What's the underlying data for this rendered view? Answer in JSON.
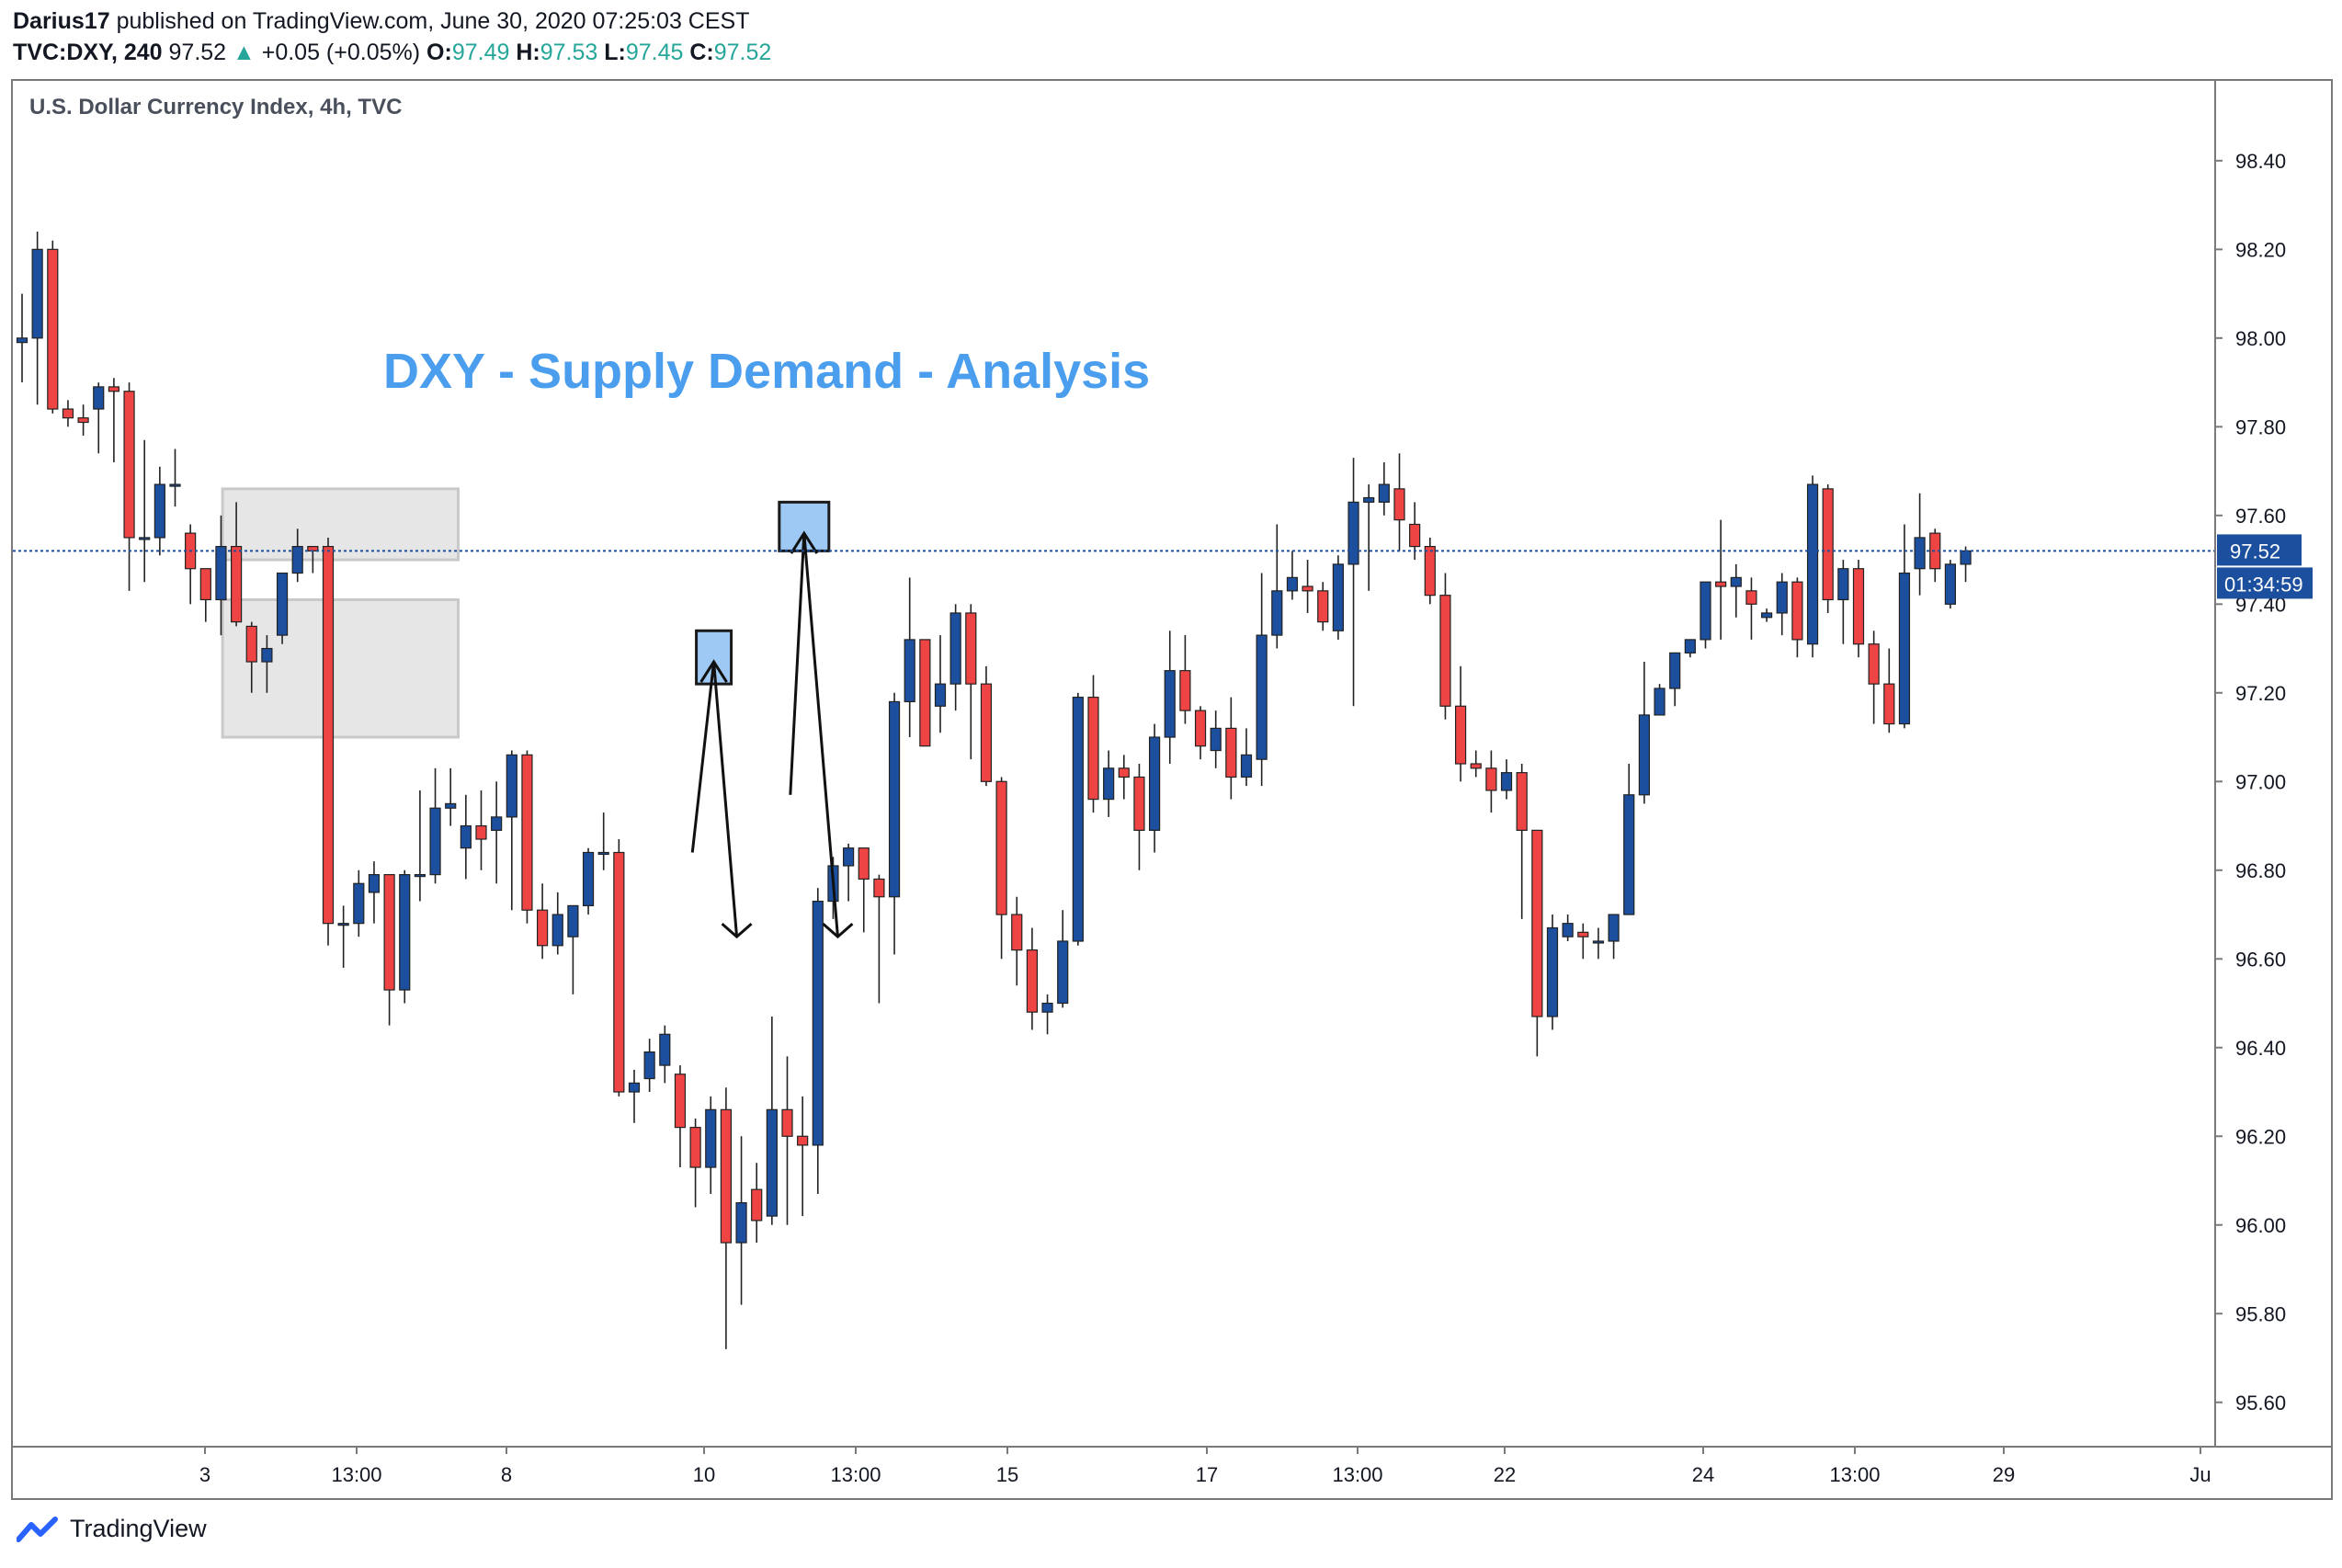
{
  "header": {
    "publisher": "Darius17",
    "published_text": "published on TradingView.com, June 30, 2020 07:25:03 CEST",
    "symbol": "TVC:DXY, 240",
    "last": "97.52",
    "change_arrow": "▲",
    "change": "+0.05 (+0.05%)",
    "o_label": "O:",
    "o_value": "97.49",
    "h_label": "H:",
    "h_value": "97.53",
    "l_label": "L:",
    "l_value": "97.45",
    "c_label": "C:",
    "c_value": "97.52"
  },
  "footer": {
    "brand": "TradingView",
    "logo_icon": "tradingview-logo-icon"
  },
  "colors": {
    "up": "#1c4f9e",
    "down": "#ef4444",
    "zone": "#e6e6e6",
    "annotation": "#4a9eed",
    "price_line": "#1c4f9e",
    "marker": "#9ec9f5"
  },
  "chart_data": {
    "type": "candlestick",
    "title": "U.S. Dollar Currency Index, 4h, TVC",
    "annotation": "DXY - Supply Demand - Analysis",
    "y_ticks": [
      "98.40",
      "98.20",
      "98.00",
      "97.80",
      "97.60",
      "97.40",
      "97.20",
      "97.00",
      "96.80",
      "96.60",
      "96.40",
      "96.20",
      "96.00",
      "95.80",
      "95.60"
    ],
    "ylim": [
      95.5,
      98.58
    ],
    "x_ticks": [
      "3",
      "13:00",
      "8",
      "10",
      "13:00",
      "15",
      "17",
      "13:00",
      "22",
      "24",
      "13:00",
      "29",
      "Ju"
    ],
    "last_price": "97.52",
    "countdown": "01:34:59",
    "supply_zones": [
      {
        "from": 97.5,
        "to": 97.66
      },
      {
        "from": 97.1,
        "to": 97.41
      }
    ],
    "candles": [
      {
        "o": 97.99,
        "h": 98.1,
        "l": 97.9,
        "c": 98.0
      },
      {
        "o": 98.0,
        "h": 98.24,
        "l": 97.85,
        "c": 98.2
      },
      {
        "o": 98.2,
        "h": 98.22,
        "l": 97.83,
        "c": 97.84
      },
      {
        "o": 97.84,
        "h": 97.86,
        "l": 97.8,
        "c": 97.82
      },
      {
        "o": 97.82,
        "h": 97.85,
        "l": 97.78,
        "c": 97.81
      },
      {
        "o": 97.84,
        "h": 97.9,
        "l": 97.74,
        "c": 97.89
      },
      {
        "o": 97.89,
        "h": 97.91,
        "l": 97.72,
        "c": 97.88
      },
      {
        "o": 97.88,
        "h": 97.9,
        "l": 97.43,
        "c": 97.55
      },
      {
        "o": 97.55,
        "h": 97.77,
        "l": 97.45,
        "c": 97.55
      },
      {
        "o": 97.55,
        "h": 97.71,
        "l": 97.51,
        "c": 97.67
      },
      {
        "o": 97.67,
        "h": 97.75,
        "l": 97.62,
        "c": 97.67
      },
      {
        "o": 97.56,
        "h": 97.58,
        "l": 97.4,
        "c": 97.48
      },
      {
        "o": 97.48,
        "h": 97.48,
        "l": 97.36,
        "c": 97.41
      },
      {
        "o": 97.41,
        "h": 97.6,
        "l": 97.33,
        "c": 97.53
      },
      {
        "o": 97.53,
        "h": 97.63,
        "l": 97.35,
        "c": 97.36
      },
      {
        "o": 97.35,
        "h": 97.36,
        "l": 97.2,
        "c": 97.27
      },
      {
        "o": 97.27,
        "h": 97.33,
        "l": 97.2,
        "c": 97.3
      },
      {
        "o": 97.33,
        "h": 97.47,
        "l": 97.31,
        "c": 97.47
      },
      {
        "o": 97.47,
        "h": 97.57,
        "l": 97.45,
        "c": 97.53
      },
      {
        "o": 97.53,
        "h": 97.53,
        "l": 97.47,
        "c": 97.52
      },
      {
        "o": 97.53,
        "h": 97.55,
        "l": 96.63,
        "c": 96.68
      },
      {
        "o": 96.68,
        "h": 96.72,
        "l": 96.58,
        "c": 96.68
      },
      {
        "o": 96.68,
        "h": 96.8,
        "l": 96.65,
        "c": 96.77
      },
      {
        "o": 96.75,
        "h": 96.82,
        "l": 96.68,
        "c": 96.79
      },
      {
        "o": 96.79,
        "h": 96.79,
        "l": 96.45,
        "c": 96.53
      },
      {
        "o": 96.53,
        "h": 96.8,
        "l": 96.5,
        "c": 96.79
      },
      {
        "o": 96.79,
        "h": 96.98,
        "l": 96.73,
        "c": 96.79
      },
      {
        "o": 96.79,
        "h": 97.03,
        "l": 96.77,
        "c": 96.94
      },
      {
        "o": 96.94,
        "h": 97.03,
        "l": 96.9,
        "c": 96.95
      },
      {
        "o": 96.85,
        "h": 96.97,
        "l": 96.78,
        "c": 96.9
      },
      {
        "o": 96.9,
        "h": 96.98,
        "l": 96.8,
        "c": 96.87
      },
      {
        "o": 96.89,
        "h": 97.0,
        "l": 96.77,
        "c": 96.92
      },
      {
        "o": 96.92,
        "h": 97.07,
        "l": 96.71,
        "c": 97.06
      },
      {
        "o": 97.06,
        "h": 97.07,
        "l": 96.68,
        "c": 96.71
      },
      {
        "o": 96.71,
        "h": 96.77,
        "l": 96.6,
        "c": 96.63
      },
      {
        "o": 96.63,
        "h": 96.75,
        "l": 96.61,
        "c": 96.7
      },
      {
        "o": 96.65,
        "h": 96.72,
        "l": 96.52,
        "c": 96.72
      },
      {
        "o": 96.72,
        "h": 96.85,
        "l": 96.7,
        "c": 96.84
      },
      {
        "o": 96.84,
        "h": 96.93,
        "l": 96.8,
        "c": 96.84
      },
      {
        "o": 96.84,
        "h": 96.87,
        "l": 96.29,
        "c": 96.3
      },
      {
        "o": 96.3,
        "h": 96.35,
        "l": 96.23,
        "c": 96.32
      },
      {
        "o": 96.33,
        "h": 96.42,
        "l": 96.3,
        "c": 96.39
      },
      {
        "o": 96.36,
        "h": 96.45,
        "l": 96.32,
        "c": 96.43
      },
      {
        "o": 96.34,
        "h": 96.36,
        "l": 96.13,
        "c": 96.22
      },
      {
        "o": 96.22,
        "h": 96.24,
        "l": 96.04,
        "c": 96.13
      },
      {
        "o": 96.13,
        "h": 96.29,
        "l": 96.07,
        "c": 96.26
      },
      {
        "o": 96.26,
        "h": 96.31,
        "l": 95.72,
        "c": 95.96
      },
      {
        "o": 95.96,
        "h": 96.2,
        "l": 95.82,
        "c": 96.05
      },
      {
        "o": 96.08,
        "h": 96.14,
        "l": 95.96,
        "c": 96.01
      },
      {
        "o": 96.02,
        "h": 96.47,
        "l": 96.0,
        "c": 96.26
      },
      {
        "o": 96.26,
        "h": 96.38,
        "l": 96.0,
        "c": 96.2
      },
      {
        "o": 96.2,
        "h": 96.29,
        "l": 96.02,
        "c": 96.18
      },
      {
        "o": 96.18,
        "h": 96.76,
        "l": 96.07,
        "c": 96.73
      },
      {
        "o": 96.73,
        "h": 96.83,
        "l": 96.69,
        "c": 96.81
      },
      {
        "o": 96.81,
        "h": 96.86,
        "l": 96.73,
        "c": 96.85
      },
      {
        "o": 96.85,
        "h": 96.85,
        "l": 96.66,
        "c": 96.78
      },
      {
        "o": 96.78,
        "h": 96.79,
        "l": 96.5,
        "c": 96.74
      },
      {
        "o": 96.74,
        "h": 97.2,
        "l": 96.61,
        "c": 97.18
      },
      {
        "o": 97.18,
        "h": 97.46,
        "l": 97.1,
        "c": 97.32
      },
      {
        "o": 97.32,
        "h": 97.32,
        "l": 97.08,
        "c": 97.08
      },
      {
        "o": 97.17,
        "h": 97.33,
        "l": 97.11,
        "c": 97.22
      },
      {
        "o": 97.22,
        "h": 97.4,
        "l": 97.16,
        "c": 97.38
      },
      {
        "o": 97.38,
        "h": 97.4,
        "l": 97.05,
        "c": 97.22
      },
      {
        "o": 97.22,
        "h": 97.26,
        "l": 96.99,
        "c": 97.0
      },
      {
        "o": 97.0,
        "h": 97.01,
        "l": 96.6,
        "c": 96.7
      },
      {
        "o": 96.7,
        "h": 96.74,
        "l": 96.54,
        "c": 96.62
      },
      {
        "o": 96.62,
        "h": 96.67,
        "l": 96.44,
        "c": 96.48
      },
      {
        "o": 96.48,
        "h": 96.52,
        "l": 96.43,
        "c": 96.5
      },
      {
        "o": 96.5,
        "h": 96.71,
        "l": 96.49,
        "c": 96.64
      },
      {
        "o": 96.64,
        "h": 97.2,
        "l": 96.63,
        "c": 97.19
      },
      {
        "o": 97.19,
        "h": 97.24,
        "l": 96.93,
        "c": 96.96
      },
      {
        "o": 96.96,
        "h": 97.07,
        "l": 96.92,
        "c": 97.03
      },
      {
        "o": 97.03,
        "h": 97.06,
        "l": 96.96,
        "c": 97.01
      },
      {
        "o": 97.01,
        "h": 97.04,
        "l": 96.8,
        "c": 96.89
      },
      {
        "o": 96.89,
        "h": 97.13,
        "l": 96.84,
        "c": 97.1
      },
      {
        "o": 97.1,
        "h": 97.34,
        "l": 97.04,
        "c": 97.25
      },
      {
        "o": 97.25,
        "h": 97.33,
        "l": 97.13,
        "c": 97.16
      },
      {
        "o": 97.16,
        "h": 97.17,
        "l": 97.05,
        "c": 97.08
      },
      {
        "o": 97.07,
        "h": 97.16,
        "l": 97.03,
        "c": 97.12
      },
      {
        "o": 97.12,
        "h": 97.19,
        "l": 96.96,
        "c": 97.01
      },
      {
        "o": 97.01,
        "h": 97.12,
        "l": 96.99,
        "c": 97.06
      },
      {
        "o": 97.05,
        "h": 97.47,
        "l": 96.99,
        "c": 97.33
      },
      {
        "o": 97.33,
        "h": 97.58,
        "l": 97.3,
        "c": 97.43
      },
      {
        "o": 97.43,
        "h": 97.52,
        "l": 97.41,
        "c": 97.46
      },
      {
        "o": 97.44,
        "h": 97.5,
        "l": 97.38,
        "c": 97.43
      },
      {
        "o": 97.43,
        "h": 97.45,
        "l": 97.34,
        "c": 97.36
      },
      {
        "o": 97.34,
        "h": 97.51,
        "l": 97.32,
        "c": 97.49
      },
      {
        "o": 97.49,
        "h": 97.73,
        "l": 97.17,
        "c": 97.63
      },
      {
        "o": 97.63,
        "h": 97.67,
        "l": 97.43,
        "c": 97.64
      },
      {
        "o": 97.63,
        "h": 97.72,
        "l": 97.6,
        "c": 97.67
      },
      {
        "o": 97.66,
        "h": 97.74,
        "l": 97.52,
        "c": 97.59
      },
      {
        "o": 97.58,
        "h": 97.63,
        "l": 97.5,
        "c": 97.53
      },
      {
        "o": 97.53,
        "h": 97.55,
        "l": 97.4,
        "c": 97.42
      },
      {
        "o": 97.42,
        "h": 97.47,
        "l": 97.14,
        "c": 97.17
      },
      {
        "o": 97.17,
        "h": 97.26,
        "l": 97.0,
        "c": 97.04
      },
      {
        "o": 97.04,
        "h": 97.07,
        "l": 97.01,
        "c": 97.03
      },
      {
        "o": 97.03,
        "h": 97.07,
        "l": 96.93,
        "c": 96.98
      },
      {
        "o": 96.98,
        "h": 97.05,
        "l": 96.96,
        "c": 97.02
      },
      {
        "o": 97.02,
        "h": 97.04,
        "l": 96.69,
        "c": 96.89
      },
      {
        "o": 96.89,
        "h": 96.88,
        "l": 96.38,
        "c": 96.47
      },
      {
        "o": 96.47,
        "h": 96.7,
        "l": 96.44,
        "c": 96.67
      },
      {
        "o": 96.65,
        "h": 96.7,
        "l": 96.64,
        "c": 96.68
      },
      {
        "o": 96.66,
        "h": 96.68,
        "l": 96.6,
        "c": 96.65
      },
      {
        "o": 96.64,
        "h": 96.67,
        "l": 96.6,
        "c": 96.64
      },
      {
        "o": 96.64,
        "h": 96.7,
        "l": 96.6,
        "c": 96.7
      },
      {
        "o": 96.7,
        "h": 97.04,
        "l": 96.7,
        "c": 96.97
      },
      {
        "o": 96.97,
        "h": 97.27,
        "l": 96.95,
        "c": 97.15
      },
      {
        "o": 97.15,
        "h": 97.22,
        "l": 97.15,
        "c": 97.21
      },
      {
        "o": 97.21,
        "h": 97.27,
        "l": 97.17,
        "c": 97.29
      },
      {
        "o": 97.29,
        "h": 97.32,
        "l": 97.28,
        "c": 97.32
      },
      {
        "o": 97.32,
        "h": 97.45,
        "l": 97.3,
        "c": 97.45
      },
      {
        "o": 97.45,
        "h": 97.59,
        "l": 97.32,
        "c": 97.44
      },
      {
        "o": 97.44,
        "h": 97.49,
        "l": 97.37,
        "c": 97.46
      },
      {
        "o": 97.43,
        "h": 97.46,
        "l": 97.32,
        "c": 97.4
      },
      {
        "o": 97.37,
        "h": 97.39,
        "l": 97.36,
        "c": 97.38
      },
      {
        "o": 97.38,
        "h": 97.47,
        "l": 97.33,
        "c": 97.45
      },
      {
        "o": 97.45,
        "h": 97.46,
        "l": 97.28,
        "c": 97.32
      },
      {
        "o": 97.31,
        "h": 97.69,
        "l": 97.28,
        "c": 97.67
      },
      {
        "o": 97.66,
        "h": 97.67,
        "l": 97.38,
        "c": 97.41
      },
      {
        "o": 97.41,
        "h": 97.5,
        "l": 97.31,
        "c": 97.48
      },
      {
        "o": 97.48,
        "h": 97.5,
        "l": 97.28,
        "c": 97.31
      },
      {
        "o": 97.31,
        "h": 97.34,
        "l": 97.13,
        "c": 97.22
      },
      {
        "o": 97.22,
        "h": 97.3,
        "l": 97.11,
        "c": 97.13
      },
      {
        "o": 97.13,
        "h": 97.58,
        "l": 97.12,
        "c": 97.47
      },
      {
        "o": 97.48,
        "h": 97.65,
        "l": 97.42,
        "c": 97.55
      },
      {
        "o": 97.56,
        "h": 97.57,
        "l": 97.45,
        "c": 97.48
      },
      {
        "o": 97.4,
        "h": 97.5,
        "l": 97.39,
        "c": 97.49
      },
      {
        "o": 97.49,
        "h": 97.53,
        "l": 97.45,
        "c": 97.52
      }
    ],
    "trade_paths": [
      {
        "marker": {
          "from": 97.22,
          "to": 97.34
        },
        "points": [
          [
            43.8,
            96.84
          ],
          [
            45.2,
            97.27
          ],
          [
            46.7,
            96.65
          ]
        ]
      },
      {
        "marker": {
          "from": 97.52,
          "to": 97.63
        },
        "points": [
          [
            50.2,
            96.97
          ],
          [
            51.1,
            97.56
          ],
          [
            53.3,
            96.65
          ]
        ]
      }
    ]
  }
}
